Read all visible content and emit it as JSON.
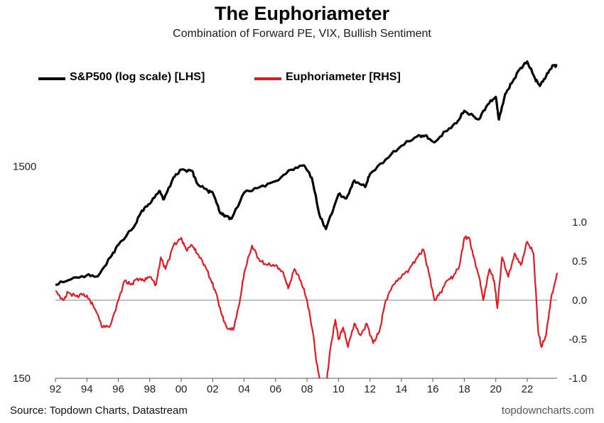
{
  "chart_data": {
    "type": "line",
    "title": "The Euphoriameter",
    "subtitle": "Combination of Forward PE, VIX, Bullish Sentiment",
    "legend_position": "top-left",
    "grid": false,
    "x_ticks": [
      "92",
      "94",
      "96",
      "98",
      "00",
      "02",
      "04",
      "06",
      "08",
      "10",
      "12",
      "14",
      "16",
      "18",
      "20",
      "22"
    ],
    "x_range": [
      1992,
      2023.9
    ],
    "left_axis": {
      "ticks": [
        "1500",
        "150"
      ],
      "scale": "log",
      "range": [
        150,
        4650
      ]
    },
    "right_axis": {
      "ticks": [
        "1.0",
        "0.5",
        "0.0",
        "-0.5",
        "-1.0"
      ],
      "range": [
        -1.0,
        1.0
      ]
    },
    "zero_line": 0.0,
    "series": [
      {
        "name": "S&P500 (log scale) [LHS]",
        "axis": "left",
        "color": "#000000",
        "x": [
          1992.0,
          1993.0,
          1994.0,
          1994.7,
          1995.5,
          1996.0,
          1997.0,
          1997.5,
          1998.0,
          1998.6,
          1998.9,
          1999.5,
          2000.0,
          2000.7,
          2001.0,
          2001.7,
          2002.0,
          2002.5,
          2002.8,
          2003.2,
          2004.0,
          2005.0,
          2006.0,
          2007.0,
          2007.8,
          2008.3,
          2008.8,
          2009.2,
          2010.0,
          2010.5,
          2011.0,
          2011.7,
          2012.0,
          2013.0,
          2014.0,
          2015.0,
          2015.5,
          2016.1,
          2016.8,
          2017.5,
          2018.0,
          2018.9,
          2019.5,
          2020.0,
          2020.2,
          2020.6,
          2021.0,
          2021.5,
          2022.0,
          2022.5,
          2022.8,
          2023.2,
          2023.6,
          2023.9
        ],
        "y": [
          415,
          440,
          460,
          455,
          560,
          640,
          780,
          930,
          1000,
          1150,
          1050,
          1330,
          1450,
          1430,
          1250,
          1150,
          1130,
          900,
          880,
          850,
          1130,
          1200,
          1280,
          1450,
          1520,
          1330,
          880,
          760,
          1110,
          1060,
          1290,
          1200,
          1380,
          1620,
          1880,
          2080,
          2100,
          1950,
          2200,
          2400,
          2750,
          2500,
          2950,
          3200,
          2500,
          3300,
          3700,
          4300,
          4700,
          3900,
          3600,
          4000,
          4500,
          4500
        ]
      },
      {
        "name": "Euphoriameter [RHS]",
        "axis": "right",
        "color": "#e01b24",
        "x": [
          1992.0,
          1992.5,
          1992.8,
          1993.3,
          1993.8,
          1994.2,
          1994.6,
          1995.0,
          1995.5,
          1996.0,
          1996.4,
          1996.8,
          1997.2,
          1997.6,
          1998.0,
          1998.4,
          1998.7,
          1999.0,
          1999.5,
          2000.0,
          2000.3,
          2000.7,
          2001.0,
          2001.5,
          2001.9,
          2002.2,
          2002.6,
          2002.9,
          2003.3,
          2003.7,
          2004.0,
          2004.5,
          2005.0,
          2005.5,
          2006.0,
          2006.5,
          2006.8,
          2007.2,
          2007.6,
          2008.0,
          2008.4,
          2008.6,
          2008.9,
          2009.2,
          2009.5,
          2009.8,
          2010.0,
          2010.3,
          2010.6,
          2011.0,
          2011.4,
          2011.8,
          2012.2,
          2012.6,
          2013.0,
          2013.5,
          2014.0,
          2014.5,
          2015.0,
          2015.4,
          2015.8,
          2016.1,
          2016.5,
          2016.9,
          2017.3,
          2017.7,
          2018.0,
          2018.3,
          2018.6,
          2019.0,
          2019.2,
          2019.6,
          2019.9,
          2020.1,
          2020.4,
          2020.8,
          2021.2,
          2021.6,
          2022.0,
          2022.4,
          2022.7,
          2022.9,
          2023.2,
          2023.5,
          2023.9
        ],
        "y": [
          0.12,
          0.0,
          0.1,
          0.05,
          0.08,
          0.0,
          -0.15,
          -0.35,
          -0.32,
          0.0,
          0.25,
          0.2,
          0.28,
          0.25,
          0.3,
          0.2,
          0.55,
          0.4,
          0.7,
          0.8,
          0.65,
          0.7,
          0.6,
          0.45,
          0.25,
          0.1,
          -0.2,
          -0.35,
          -0.38,
          -0.05,
          0.35,
          0.7,
          0.5,
          0.45,
          0.45,
          0.35,
          0.15,
          0.4,
          0.25,
          0.0,
          -0.45,
          -0.8,
          -1.1,
          -1.1,
          -0.6,
          -0.25,
          -0.5,
          -0.35,
          -0.6,
          -0.3,
          -0.45,
          -0.3,
          -0.55,
          -0.4,
          0.0,
          0.2,
          0.3,
          0.4,
          0.55,
          0.65,
          0.3,
          0.0,
          0.1,
          0.25,
          0.3,
          0.45,
          0.8,
          0.8,
          0.55,
          0.25,
          0.0,
          0.4,
          0.25,
          -0.1,
          0.55,
          0.3,
          0.6,
          0.45,
          0.75,
          0.6,
          -0.4,
          -0.6,
          -0.45,
          0.0,
          0.35
        ]
      }
    ]
  },
  "footer": {
    "source": "Source: Topdown Charts, Datastream",
    "watermark": "topdowncharts.com"
  }
}
